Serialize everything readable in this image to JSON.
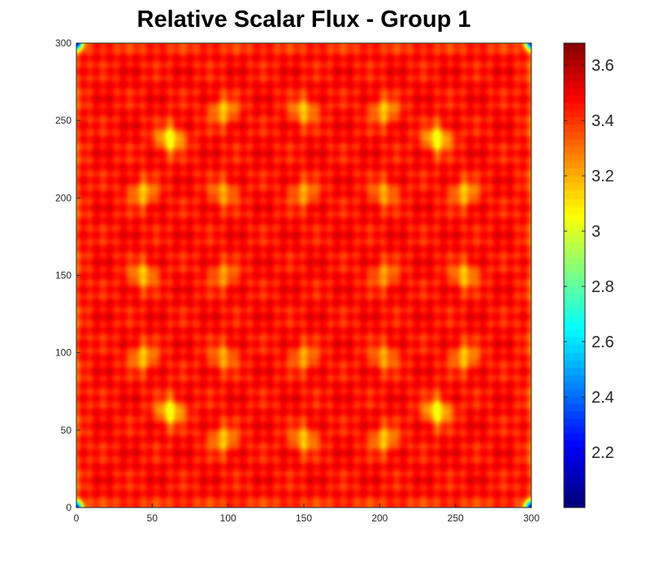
{
  "chart_data": {
    "type": "heatmap",
    "title": "Relative Scalar Flux - Group 1",
    "xlabel": "",
    "ylabel": "",
    "xlim": [
      0,
      300
    ],
    "ylim": [
      0,
      300
    ],
    "x_ticks": [
      "0",
      "50",
      "100",
      "150",
      "200",
      "250",
      "300"
    ],
    "y_ticks": [
      "0",
      "50",
      "100",
      "150",
      "200",
      "250",
      "300"
    ],
    "colorbar": {
      "colormap": "jet",
      "range": [
        2.0,
        3.68
      ],
      "ticks": [
        "2.2",
        "2.4",
        "2.6",
        "2.8",
        "3",
        "3.2",
        "3.4",
        "3.6"
      ]
    },
    "grid": false,
    "base_level": 3.45,
    "lattice_pitch": 17.6,
    "hot_spots": [
      {
        "x": 62,
        "y": 238,
        "value": 3.03
      },
      {
        "x": 238,
        "y": 238,
        "value": 3.03
      },
      {
        "x": 62,
        "y": 62,
        "value": 3.03
      },
      {
        "x": 238,
        "y": 62,
        "value": 3.03
      },
      {
        "x": 97,
        "y": 256,
        "value": 3.15
      },
      {
        "x": 150,
        "y": 256,
        "value": 3.15
      },
      {
        "x": 203,
        "y": 256,
        "value": 3.15
      },
      {
        "x": 44,
        "y": 203,
        "value": 3.15
      },
      {
        "x": 97,
        "y": 203,
        "value": 3.2
      },
      {
        "x": 150,
        "y": 203,
        "value": 3.2
      },
      {
        "x": 203,
        "y": 203,
        "value": 3.2
      },
      {
        "x": 256,
        "y": 203,
        "value": 3.15
      },
      {
        "x": 44,
        "y": 150,
        "value": 3.15
      },
      {
        "x": 97,
        "y": 150,
        "value": 3.22
      },
      {
        "x": 203,
        "y": 150,
        "value": 3.22
      },
      {
        "x": 256,
        "y": 150,
        "value": 3.15
      },
      {
        "x": 44,
        "y": 97,
        "value": 3.15
      },
      {
        "x": 97,
        "y": 97,
        "value": 3.2
      },
      {
        "x": 150,
        "y": 97,
        "value": 3.2
      },
      {
        "x": 203,
        "y": 97,
        "value": 3.2
      },
      {
        "x": 256,
        "y": 97,
        "value": 3.15
      },
      {
        "x": 97,
        "y": 44,
        "value": 3.15
      },
      {
        "x": 150,
        "y": 44,
        "value": 3.15
      },
      {
        "x": 203,
        "y": 44,
        "value": 3.15
      }
    ],
    "corner_value": 2.3
  }
}
